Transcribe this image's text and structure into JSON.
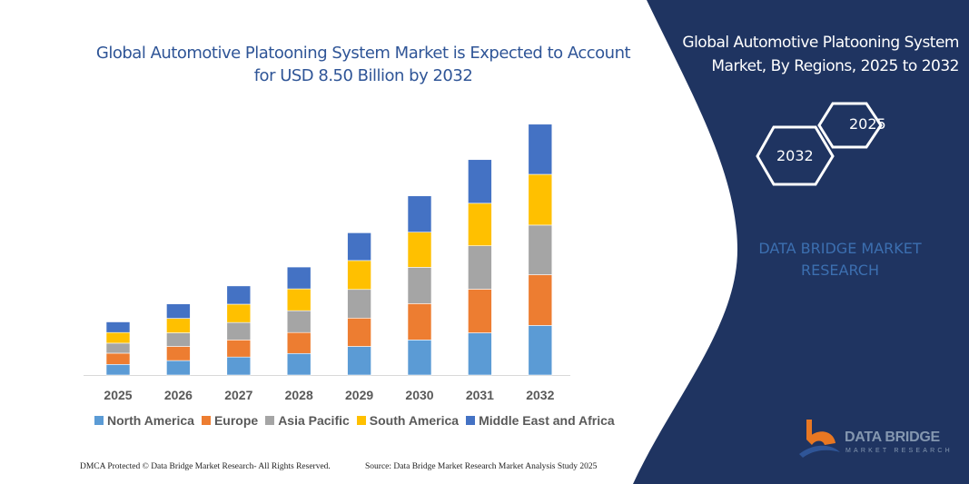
{
  "title": "Global Automotive Platooning System Market is Expected to Account for USD 8.50 Billion by 2032",
  "side_panel": {
    "title": "Global Automotive Platooning System Market, By Regions, 2025 to 2032",
    "hex_start": "2025",
    "hex_end": "2032",
    "brand_text": "DATA BRIDGE MARKET RESEARCH",
    "logo_name": "DATA BRIDGE",
    "logo_sub": "MARKET RESEARCH",
    "background_color": "#1f3461"
  },
  "footer": {
    "left": "DMCA Protected © Data Bridge Market Research-  All Rights Reserved.",
    "right": "Source: Data Bridge Market Research  Market Analysis Study 2025"
  },
  "chart_data": {
    "type": "bar",
    "stacked": true,
    "title": "Global Automotive Platooning System Market is Expected to Account for USD 8.50 Billion by 2032",
    "xlabel": "",
    "ylabel": "",
    "unit": "USD Billion",
    "y_axis_visible": false,
    "grid": false,
    "legend_position": "bottom",
    "categories": [
      "2025",
      "2026",
      "2027",
      "2028",
      "2029",
      "2030",
      "2031",
      "2032"
    ],
    "series": [
      {
        "name": "North America",
        "color": "#5b9bd5",
        "values": [
          0.36,
          0.49,
          0.61,
          0.73,
          0.97,
          1.19,
          1.43,
          1.68
        ]
      },
      {
        "name": "Europe",
        "color": "#ed7d31",
        "values": [
          0.38,
          0.48,
          0.58,
          0.71,
          0.96,
          1.23,
          1.48,
          1.72
        ]
      },
      {
        "name": "Asia Pacific",
        "color": "#a5a5a5",
        "values": [
          0.34,
          0.46,
          0.59,
          0.74,
          0.97,
          1.23,
          1.47,
          1.68
        ]
      },
      {
        "name": "South America",
        "color": "#ffc000",
        "values": [
          0.36,
          0.49,
          0.62,
          0.74,
          0.98,
          1.19,
          1.44,
          1.72
        ]
      },
      {
        "name": "Middle East and Africa",
        "color": "#4472c4",
        "values": [
          0.36,
          0.49,
          0.62,
          0.74,
          0.94,
          1.23,
          1.48,
          1.7
        ]
      }
    ]
  }
}
